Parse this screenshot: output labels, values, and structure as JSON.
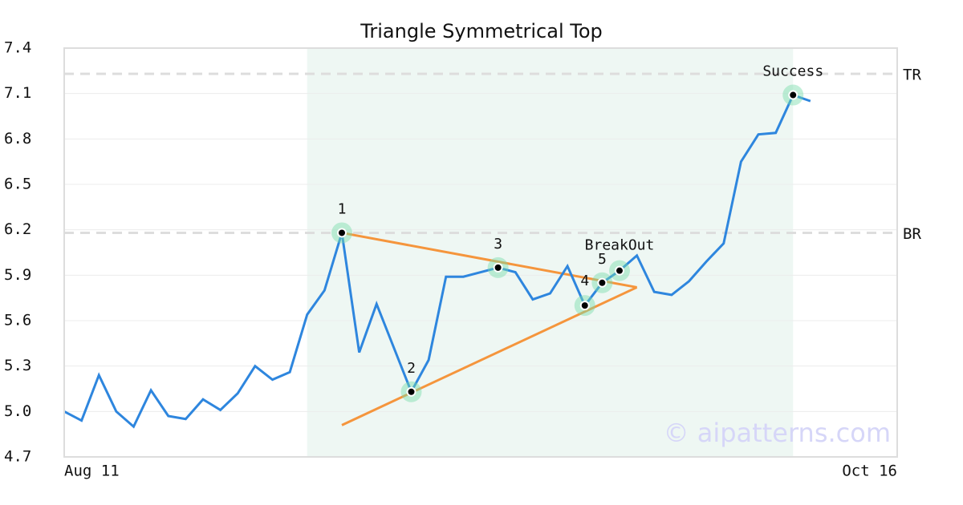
{
  "chart_data": {
    "type": "line",
    "title": "Triangle Symmetrical Top",
    "categories": [
      "Aug 11",
      null,
      null,
      null,
      null,
      null,
      null,
      null,
      null,
      null,
      null,
      null,
      null,
      null,
      null,
      null,
      null,
      null,
      null,
      null,
      null,
      null,
      null,
      null,
      null,
      null,
      null,
      null,
      null,
      null,
      null,
      null,
      null,
      null,
      null,
      null,
      null,
      null,
      null,
      null,
      null,
      null,
      null,
      null,
      null,
      null,
      null,
      null,
      "Oct 16"
    ],
    "values": [
      5.0,
      4.94,
      5.24,
      5.0,
      4.9,
      5.14,
      4.97,
      4.95,
      5.08,
      5.01,
      5.12,
      5.3,
      5.21,
      5.26,
      5.64,
      5.8,
      6.18,
      5.39,
      5.71,
      5.42,
      5.13,
      5.34,
      5.89,
      5.89,
      5.92,
      5.95,
      5.92,
      5.74,
      5.78,
      5.96,
      5.7,
      5.85,
      5.93,
      6.03,
      5.79,
      5.77,
      5.86,
      5.99,
      6.11,
      6.65,
      6.83,
      6.84,
      7.09,
      7.05,
      null,
      null,
      null,
      null,
      null
    ],
    "color": "#2e86de",
    "ylim": [
      4.7,
      7.4
    ],
    "yticks": [
      4.7,
      {
        "value": 5.0,
        "label": "5.0"
      },
      5.3,
      5.6,
      5.9,
      6.2,
      6.5,
      6.8,
      7.1,
      7.4
    ],
    "grid": true,
    "shaded_range": [
      14,
      42
    ],
    "reference_lines": [
      {
        "label": "TR",
        "value": 7.23
      },
      {
        "label": "BR",
        "value": 6.18
      }
    ],
    "trendlines": [
      {
        "x": [
          16,
          33
        ],
        "values": [
          6.18,
          5.82
        ]
      },
      {
        "x": [
          16,
          33
        ],
        "values": [
          4.91,
          5.82
        ]
      }
    ],
    "annotations": [
      {
        "label": "1",
        "x": 16
      },
      {
        "label": "2",
        "x": 20
      },
      {
        "label": "3",
        "x": 25
      },
      {
        "label": "4",
        "x": 30
      },
      {
        "label": "5",
        "x": 31
      },
      {
        "label": "BreakOut",
        "x": 32
      },
      {
        "label": "Success",
        "x": 42
      }
    ],
    "watermark": "© aipatterns.com"
  }
}
